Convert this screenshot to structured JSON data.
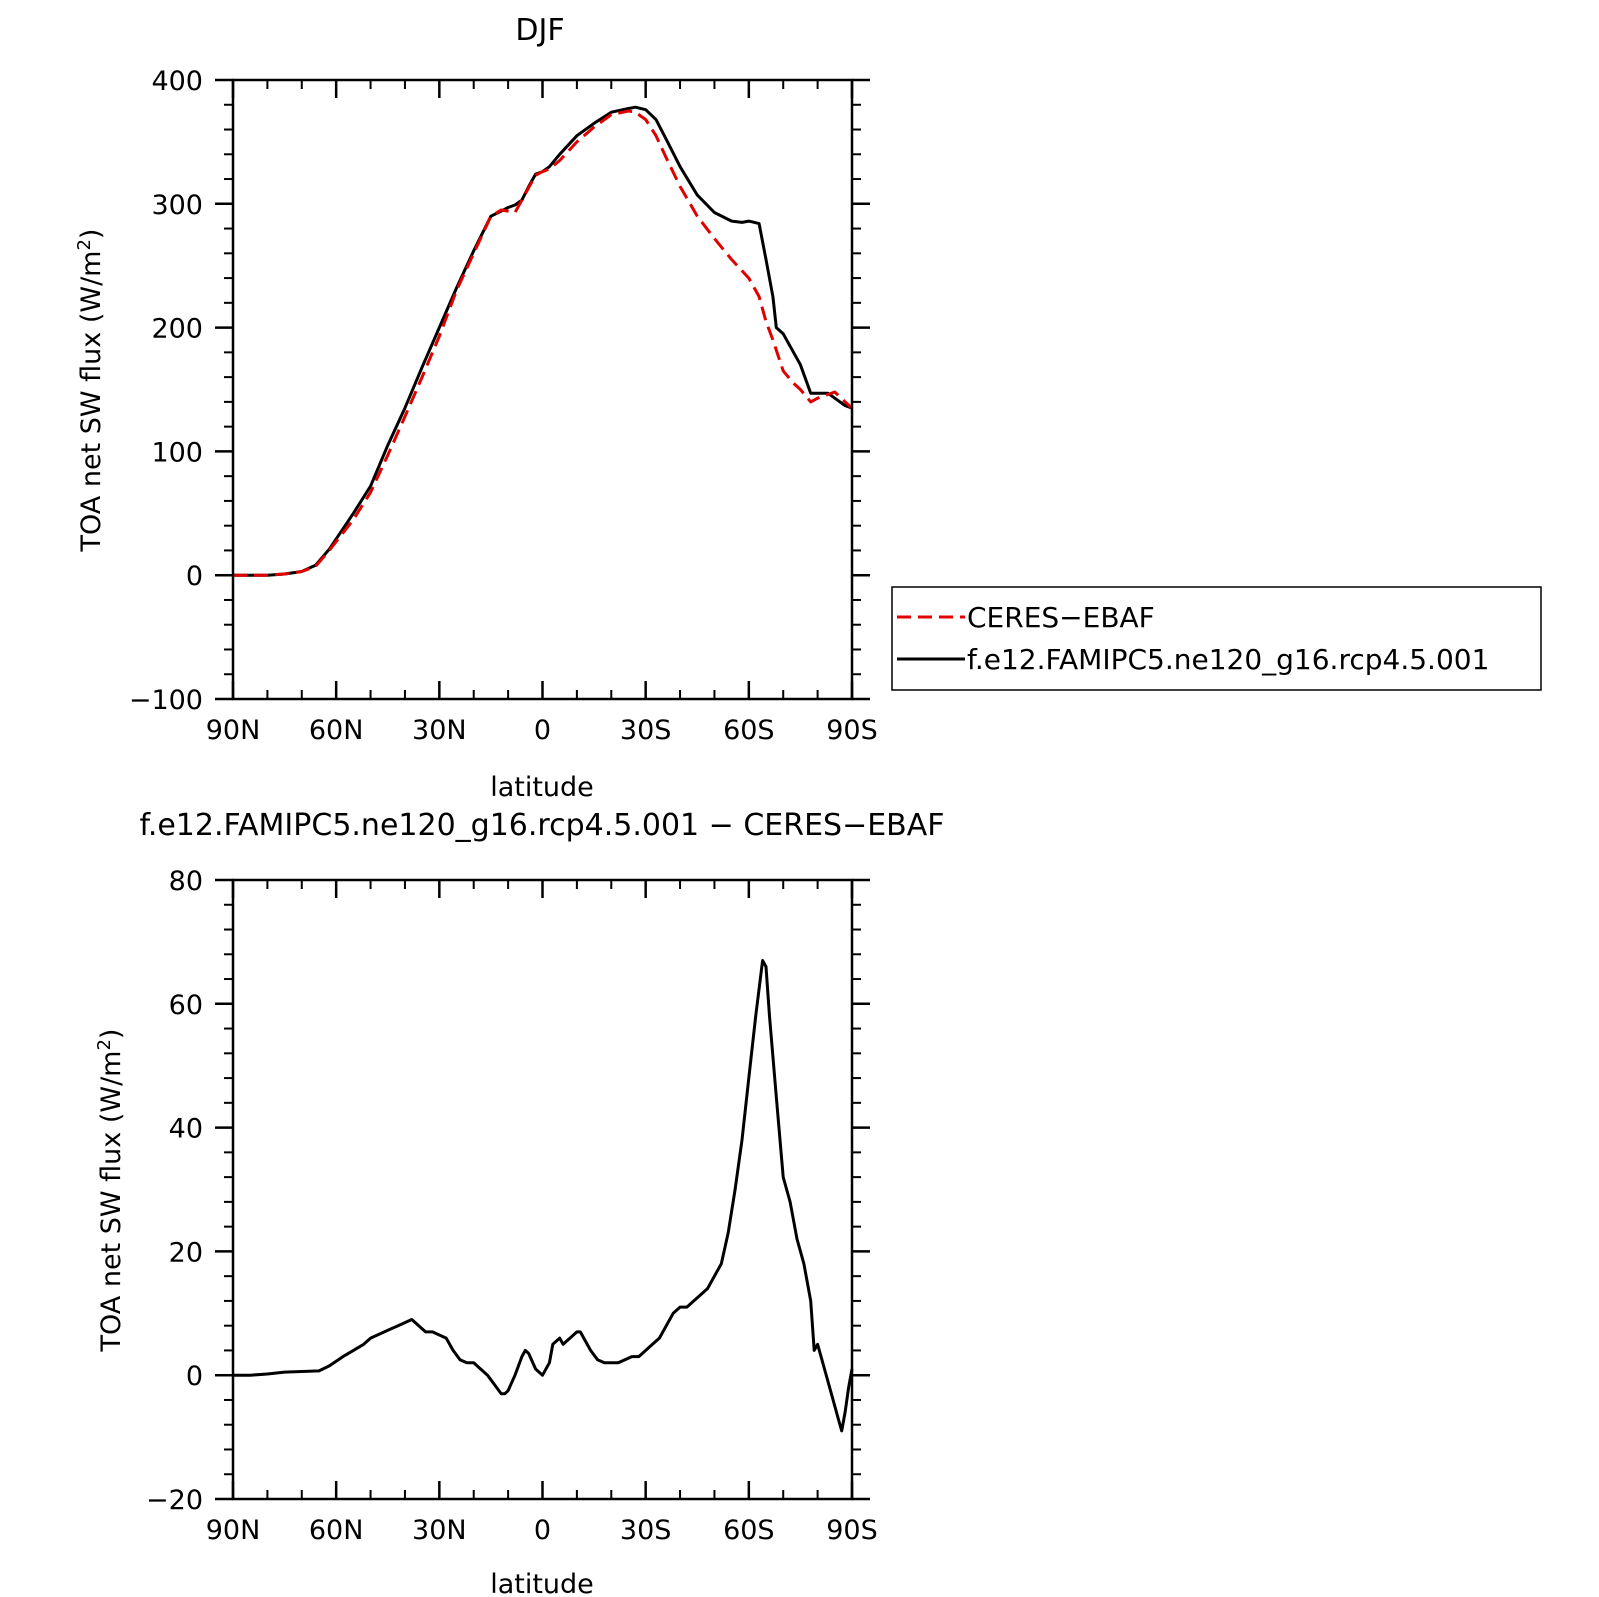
{
  "chart_data": [
    {
      "type": "line",
      "title": "DJF",
      "xlabel": "latitude",
      "ylabel": "TOA net SW flux (W/m",
      "ylabel_sup": "2",
      "ylabel_end": ")",
      "xlim": [
        -90,
        90
      ],
      "ylim": [
        -100,
        400
      ],
      "x_ticks": [
        -90,
        -60,
        -30,
        0,
        30,
        60,
        90
      ],
      "x_tick_labels": [
        "90N",
        "60N",
        "30N",
        "0",
        "30S",
        "60S",
        "90S"
      ],
      "y_ticks": [
        -100,
        0,
        100,
        200,
        300,
        400
      ],
      "y_tick_labels": [
        "−100",
        "0",
        "100",
        "200",
        "300",
        "400"
      ],
      "grid": false,
      "legend_placement": "right",
      "series": [
        {
          "name": "CERES−EBAF",
          "color": "#e00000",
          "dash": "dashed",
          "x": [
            -90,
            -80,
            -75,
            -70,
            -66,
            -62,
            -55,
            -50,
            -45,
            -40,
            -35,
            -30,
            -25,
            -20,
            -15,
            -12,
            -10,
            -8,
            -6,
            -4,
            -2,
            0,
            2,
            5,
            10,
            15,
            20,
            25,
            27,
            30,
            33,
            36,
            40,
            45,
            50,
            55,
            60,
            63,
            65,
            67,
            70,
            73,
            75,
            78,
            80,
            83,
            85,
            88,
            90
          ],
          "y": [
            0,
            0,
            1,
            3,
            7,
            20,
            45,
            67,
            97,
            128,
            160,
            193,
            230,
            260,
            290,
            295,
            294,
            293,
            303,
            313,
            323,
            326,
            328,
            335,
            350,
            362,
            372,
            375,
            374,
            368,
            355,
            337,
            314,
            290,
            272,
            255,
            240,
            225,
            205,
            190,
            165,
            155,
            150,
            140,
            143,
            146,
            148,
            140,
            135
          ]
        },
        {
          "name": "f.e12.FAMIPC5.ne120_g16.rcp4.5.001",
          "color": "#000000",
          "dash": "solid",
          "x": [
            -90,
            -80,
            -75,
            -70,
            -66,
            -62,
            -55,
            -50,
            -45,
            -40,
            -35,
            -30,
            -25,
            -20,
            -15,
            -12,
            -10,
            -8,
            -6,
            -4,
            -2,
            0,
            2,
            5,
            10,
            15,
            20,
            25,
            27,
            30,
            33,
            36,
            40,
            45,
            50,
            55,
            58,
            60,
            63,
            65,
            67,
            68,
            70,
            72,
            75,
            78,
            80,
            83,
            85,
            88,
            90
          ],
          "y": [
            0,
            0,
            1,
            3,
            8,
            21,
            50,
            72,
            105,
            135,
            168,
            200,
            232,
            262,
            290,
            294,
            297,
            299,
            303,
            314,
            324,
            326,
            330,
            340,
            355,
            365,
            374,
            377,
            378,
            376,
            368,
            352,
            330,
            307,
            293,
            286,
            285,
            286,
            284,
            255,
            225,
            200,
            195,
            185,
            170,
            147,
            147,
            147,
            143,
            137,
            135
          ]
        }
      ]
    },
    {
      "type": "line",
      "title": "f.e12.FAMIPC5.ne120_g16.rcp4.5.001 − CERES−EBAF",
      "xlabel": "latitude",
      "ylabel": "TOA net SW flux (W/m",
      "ylabel_sup": "2",
      "ylabel_end": ")",
      "xlim": [
        -90,
        90
      ],
      "ylim": [
        -20,
        80
      ],
      "x_ticks": [
        -90,
        -60,
        -30,
        0,
        30,
        60,
        90
      ],
      "x_tick_labels": [
        "90N",
        "60N",
        "30N",
        "0",
        "30S",
        "60S",
        "90S"
      ],
      "y_ticks": [
        -20,
        0,
        20,
        40,
        60,
        80
      ],
      "y_tick_labels": [
        "−20",
        "0",
        "20",
        "40",
        "60",
        "80"
      ],
      "grid": false,
      "series": [
        {
          "color": "#000000",
          "dash": "solid",
          "x": [
            -90,
            -85,
            -80,
            -75,
            -70,
            -65,
            -62,
            -58,
            -55,
            -52,
            -50,
            -48,
            -46,
            -44,
            -42,
            -40,
            -38,
            -36,
            -34,
            -32,
            -30,
            -28,
            -26,
            -24,
            -22,
            -20,
            -18,
            -16,
            -14,
            -12,
            -11,
            -10,
            -8,
            -6,
            -5,
            -4,
            -2,
            0,
            2,
            3,
            5,
            6,
            8,
            10,
            11,
            12,
            14,
            16,
            18,
            20,
            22,
            24,
            26,
            28,
            30,
            32,
            34,
            36,
            38,
            40,
            42,
            44,
            46,
            48,
            50,
            52,
            54,
            56,
            58,
            60,
            62,
            64,
            65,
            66,
            68,
            70,
            72,
            74,
            76,
            78,
            79,
            80,
            82,
            84,
            86,
            87,
            88,
            89,
            90
          ],
          "y": [
            0,
            0,
            0.2,
            0.5,
            0.6,
            0.7,
            1.5,
            3,
            4,
            5,
            6,
            6.5,
            7,
            7.5,
            8,
            8.5,
            9,
            8,
            7,
            7,
            6.5,
            6,
            4,
            2.5,
            2,
            2,
            1,
            0,
            -1.5,
            -3,
            -3,
            -2.5,
            0,
            3,
            4,
            3.5,
            1,
            0,
            2,
            5,
            6,
            5,
            6,
            7,
            7,
            6,
            4,
            2.5,
            2,
            2,
            2,
            2.5,
            3,
            3,
            4,
            5,
            6,
            8,
            10,
            11,
            11,
            12,
            13,
            14,
            16,
            18,
            23,
            30,
            38,
            48,
            58,
            67,
            66,
            58,
            45,
            32,
            28,
            22,
            18,
            12,
            4,
            5,
            1,
            -3,
            -7,
            -9,
            -6,
            -2,
            1
          ]
        }
      ]
    }
  ]
}
